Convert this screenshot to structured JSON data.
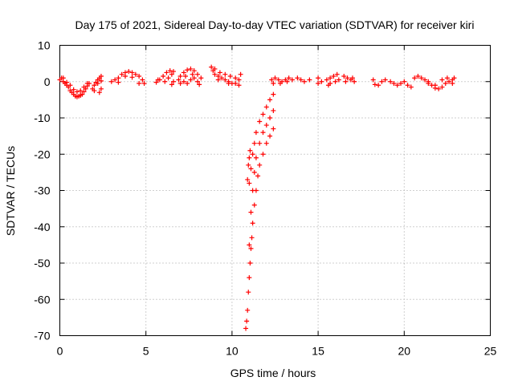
{
  "chart_data": {
    "type": "scatter",
    "title": "Day 175 of 2021, Sidereal Day-to-day VTEC variation (SDTVAR) for receiver kiri",
    "xlabel": "GPS time / hours",
    "ylabel": "SDTVAR / TECUs",
    "xlim": [
      0,
      25
    ],
    "ylim": [
      -70,
      10
    ],
    "xticks": [
      0,
      5,
      10,
      15,
      20,
      25
    ],
    "yticks": [
      10,
      0,
      -10,
      -20,
      -30,
      -40,
      -50,
      -60,
      -70
    ],
    "grid": true,
    "marker": "+",
    "color": "#ff0000",
    "series": [
      {
        "points": [
          [
            0.0,
            0.5
          ],
          [
            0.1,
            1.0
          ],
          [
            0.2,
            0.0
          ],
          [
            0.3,
            -0.5
          ],
          [
            0.4,
            -1.0
          ],
          [
            0.5,
            -1.5
          ],
          [
            0.6,
            -2.5
          ],
          [
            0.7,
            -3.0
          ],
          [
            0.8,
            -3.5
          ],
          [
            0.9,
            -4.0
          ],
          [
            1.0,
            -4.2
          ],
          [
            1.1,
            -4.0
          ],
          [
            1.2,
            -3.8
          ],
          [
            1.3,
            -3.5
          ],
          [
            1.4,
            -2.8
          ],
          [
            1.5,
            -2.0
          ],
          [
            1.6,
            -1.2
          ],
          [
            1.7,
            -0.5
          ],
          [
            0.2,
            1.0
          ],
          [
            0.4,
            -0.2
          ],
          [
            0.6,
            -1.0
          ],
          [
            0.8,
            -2.2
          ],
          [
            1.0,
            -2.8
          ],
          [
            1.2,
            -2.5
          ],
          [
            1.4,
            -1.5
          ],
          [
            1.6,
            -0.5
          ],
          [
            1.9,
            -2.0
          ],
          [
            2.0,
            -1.0
          ],
          [
            2.1,
            -0.2
          ],
          [
            2.2,
            0.5
          ],
          [
            2.3,
            1.0
          ],
          [
            2.4,
            1.5
          ],
          [
            2.0,
            -2.5
          ],
          [
            2.2,
            -0.5
          ],
          [
            2.4,
            0.2
          ],
          [
            2.3,
            -3.0
          ],
          [
            2.4,
            -2.0
          ],
          [
            3.0,
            0.0
          ],
          [
            3.2,
            0.5
          ],
          [
            3.4,
            1.0
          ],
          [
            3.6,
            2.0
          ],
          [
            3.8,
            2.5
          ],
          [
            4.0,
            2.8
          ],
          [
            4.2,
            2.5
          ],
          [
            4.4,
            2.0
          ],
          [
            3.4,
            -0.2
          ],
          [
            3.8,
            1.5
          ],
          [
            4.2,
            1.2
          ],
          [
            4.6,
            1.5
          ],
          [
            4.8,
            0.5
          ],
          [
            4.6,
            -0.5
          ],
          [
            4.9,
            -0.5
          ],
          [
            5.6,
            -0.2
          ],
          [
            5.8,
            0.5
          ],
          [
            6.0,
            1.5
          ],
          [
            6.2,
            2.5
          ],
          [
            6.4,
            3.0
          ],
          [
            6.6,
            2.8
          ],
          [
            5.7,
            0.5
          ],
          [
            6.1,
            0.0
          ],
          [
            6.3,
            1.0
          ],
          [
            6.5,
            2.0
          ],
          [
            6.6,
            0.0
          ],
          [
            6.5,
            -0.8
          ],
          [
            6.9,
            0.5
          ],
          [
            7.0,
            1.5
          ],
          [
            7.2,
            2.5
          ],
          [
            7.4,
            3.2
          ],
          [
            7.6,
            3.5
          ],
          [
            7.8,
            3.0
          ],
          [
            8.0,
            2.0
          ],
          [
            7.0,
            -0.5
          ],
          [
            7.2,
            0.0
          ],
          [
            7.4,
            -0.5
          ],
          [
            7.6,
            0.5
          ],
          [
            7.8,
            1.0
          ],
          [
            8.0,
            0.0
          ],
          [
            7.3,
            1.5
          ],
          [
            7.7,
            2.0
          ],
          [
            8.1,
            -0.8
          ],
          [
            8.2,
            1.0
          ],
          [
            8.8,
            4.0
          ],
          [
            8.9,
            3.0
          ],
          [
            9.0,
            2.0
          ],
          [
            9.2,
            1.5
          ],
          [
            9.4,
            1.0
          ],
          [
            9.6,
            0.5
          ],
          [
            9.8,
            0.0
          ],
          [
            10.0,
            -0.5
          ],
          [
            10.2,
            -0.5
          ],
          [
            9.0,
            3.5
          ],
          [
            9.3,
            2.5
          ],
          [
            9.6,
            2.0
          ],
          [
            9.9,
            1.5
          ],
          [
            10.2,
            1.0
          ],
          [
            10.4,
            0.5
          ],
          [
            10.5,
            2.0
          ],
          [
            10.4,
            -1.0
          ],
          [
            9.2,
            0.5
          ],
          [
            9.8,
            -0.5
          ],
          [
            11.0,
            -28
          ],
          [
            11.1,
            -24
          ],
          [
            11.2,
            -20
          ],
          [
            11.3,
            -17
          ],
          [
            11.4,
            -14
          ],
          [
            11.6,
            -11
          ],
          [
            11.8,
            -9
          ],
          [
            12.0,
            -7
          ],
          [
            12.2,
            -5
          ],
          [
            12.4,
            -3.5
          ],
          [
            11.0,
            -45
          ],
          [
            11.1,
            -36
          ],
          [
            11.2,
            -30
          ],
          [
            11.3,
            -25
          ],
          [
            11.4,
            -21
          ],
          [
            11.6,
            -17
          ],
          [
            11.8,
            -14
          ],
          [
            12.0,
            -12
          ],
          [
            12.2,
            -10
          ],
          [
            12.4,
            -8
          ],
          [
            10.8,
            -68
          ],
          [
            10.85,
            -66
          ],
          [
            10.9,
            -63
          ],
          [
            10.95,
            -58
          ],
          [
            11.0,
            -54
          ],
          [
            11.05,
            -50
          ],
          [
            11.1,
            -46
          ],
          [
            11.15,
            -43
          ],
          [
            11.2,
            -39
          ],
          [
            11.3,
            -34
          ],
          [
            11.4,
            -30
          ],
          [
            11.5,
            -26
          ],
          [
            11.6,
            -23
          ],
          [
            11.8,
            -20
          ],
          [
            12.0,
            -17
          ],
          [
            12.2,
            -15
          ],
          [
            12.4,
            -13
          ],
          [
            10.9,
            -27
          ],
          [
            10.95,
            -23
          ],
          [
            11.0,
            -21
          ],
          [
            11.05,
            -19
          ],
          [
            12.3,
            0.5
          ],
          [
            12.5,
            1.0
          ],
          [
            12.7,
            0.5
          ],
          [
            12.9,
            0.0
          ],
          [
            13.1,
            0.5
          ],
          [
            13.3,
            1.0
          ],
          [
            13.5,
            0.5
          ],
          [
            12.4,
            -0.5
          ],
          [
            12.8,
            -0.5
          ],
          [
            13.2,
            0.0
          ],
          [
            13.8,
            1.0
          ],
          [
            14.0,
            0.5
          ],
          [
            14.2,
            0.0
          ],
          [
            14.5,
            0.5
          ],
          [
            15.0,
            1.0
          ],
          [
            15.2,
            0.0
          ],
          [
            15.0,
            -0.5
          ],
          [
            15.5,
            0.5
          ],
          [
            15.7,
            1.0
          ],
          [
            15.9,
            1.5
          ],
          [
            15.7,
            -0.5
          ],
          [
            16.0,
            0.0
          ],
          [
            16.2,
            0.5
          ],
          [
            16.1,
            2.0
          ],
          [
            15.6,
            -1.0
          ],
          [
            16.5,
            1.5
          ],
          [
            16.7,
            1.0
          ],
          [
            16.9,
            0.5
          ],
          [
            17.1,
            0.0
          ],
          [
            16.6,
            0.0
          ],
          [
            17.0,
            1.0
          ],
          [
            18.2,
            0.5
          ],
          [
            18.3,
            -0.8
          ],
          [
            18.5,
            -1.0
          ],
          [
            18.7,
            0.0
          ],
          [
            18.9,
            0.5
          ],
          [
            19.2,
            0.0
          ],
          [
            19.4,
            -0.5
          ],
          [
            19.6,
            -1.0
          ],
          [
            19.8,
            -0.5
          ],
          [
            20.0,
            0.0
          ],
          [
            20.2,
            -1.0
          ],
          [
            20.4,
            -1.5
          ],
          [
            20.6,
            1.0
          ],
          [
            20.8,
            1.5
          ],
          [
            21.0,
            1.0
          ],
          [
            21.2,
            0.5
          ],
          [
            21.4,
            0.0
          ],
          [
            21.6,
            -1.0
          ],
          [
            21.8,
            -1.8
          ],
          [
            22.0,
            -2.0
          ],
          [
            22.2,
            -1.5
          ],
          [
            22.4,
            -0.5
          ],
          [
            22.6,
            0.0
          ],
          [
            22.8,
            0.5
          ],
          [
            22.9,
            1.0
          ],
          [
            21.4,
            -0.5
          ],
          [
            21.8,
            -1.0
          ],
          [
            22.2,
            0.5
          ],
          [
            22.5,
            1.0
          ],
          [
            22.8,
            -0.5
          ]
        ]
      }
    ]
  }
}
